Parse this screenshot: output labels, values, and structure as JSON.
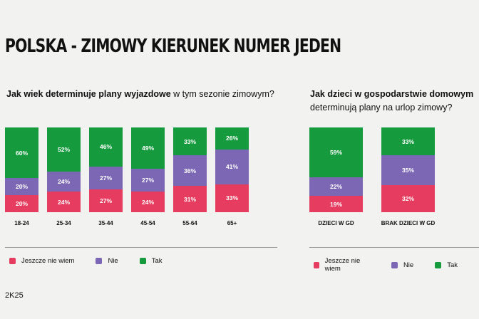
{
  "title": "POLSKA - ZIMOWY KIERUNEK NUMER JEDEN",
  "footer": "2K25",
  "colors": {
    "jeszcze": "#e63c5f",
    "nie": "#7b67b3",
    "tak": "#159a3e",
    "background": "#f2f2f1"
  },
  "legend": [
    "Jeszcze nie wiem",
    "Nie",
    "Tak"
  ],
  "chart_data": [
    {
      "type": "bar",
      "stacked": true,
      "title_bold": "Jak wiek determinuje plany wyjazdowe",
      "title_rest": "w tym sezonie zimowym?",
      "categories": [
        "18-24",
        "25-34",
        "35-44",
        "45-54",
        "55-64",
        "65+"
      ],
      "series": [
        {
          "name": "Jeszcze nie wiem",
          "values": [
            20,
            24,
            27,
            24,
            31,
            33
          ]
        },
        {
          "name": "Nie",
          "values": [
            20,
            24,
            27,
            27,
            36,
            41
          ]
        },
        {
          "name": "Tak",
          "values": [
            60,
            52,
            46,
            49,
            33,
            26
          ]
        }
      ],
      "unit": "%"
    },
    {
      "type": "bar",
      "stacked": true,
      "title_bold": "Jak dzieci w gospodarstwie domowym",
      "title_rest": "determinują plany na urlop zimowy?",
      "categories": [
        "DZIECI W GD",
        "BRAK DZIECI W GD"
      ],
      "series": [
        {
          "name": "Jeszcze nie wiem",
          "values": [
            19,
            32
          ]
        },
        {
          "name": "Nie",
          "values": [
            22,
            35
          ]
        },
        {
          "name": "Tak",
          "values": [
            59,
            33
          ]
        }
      ],
      "unit": "%"
    }
  ]
}
